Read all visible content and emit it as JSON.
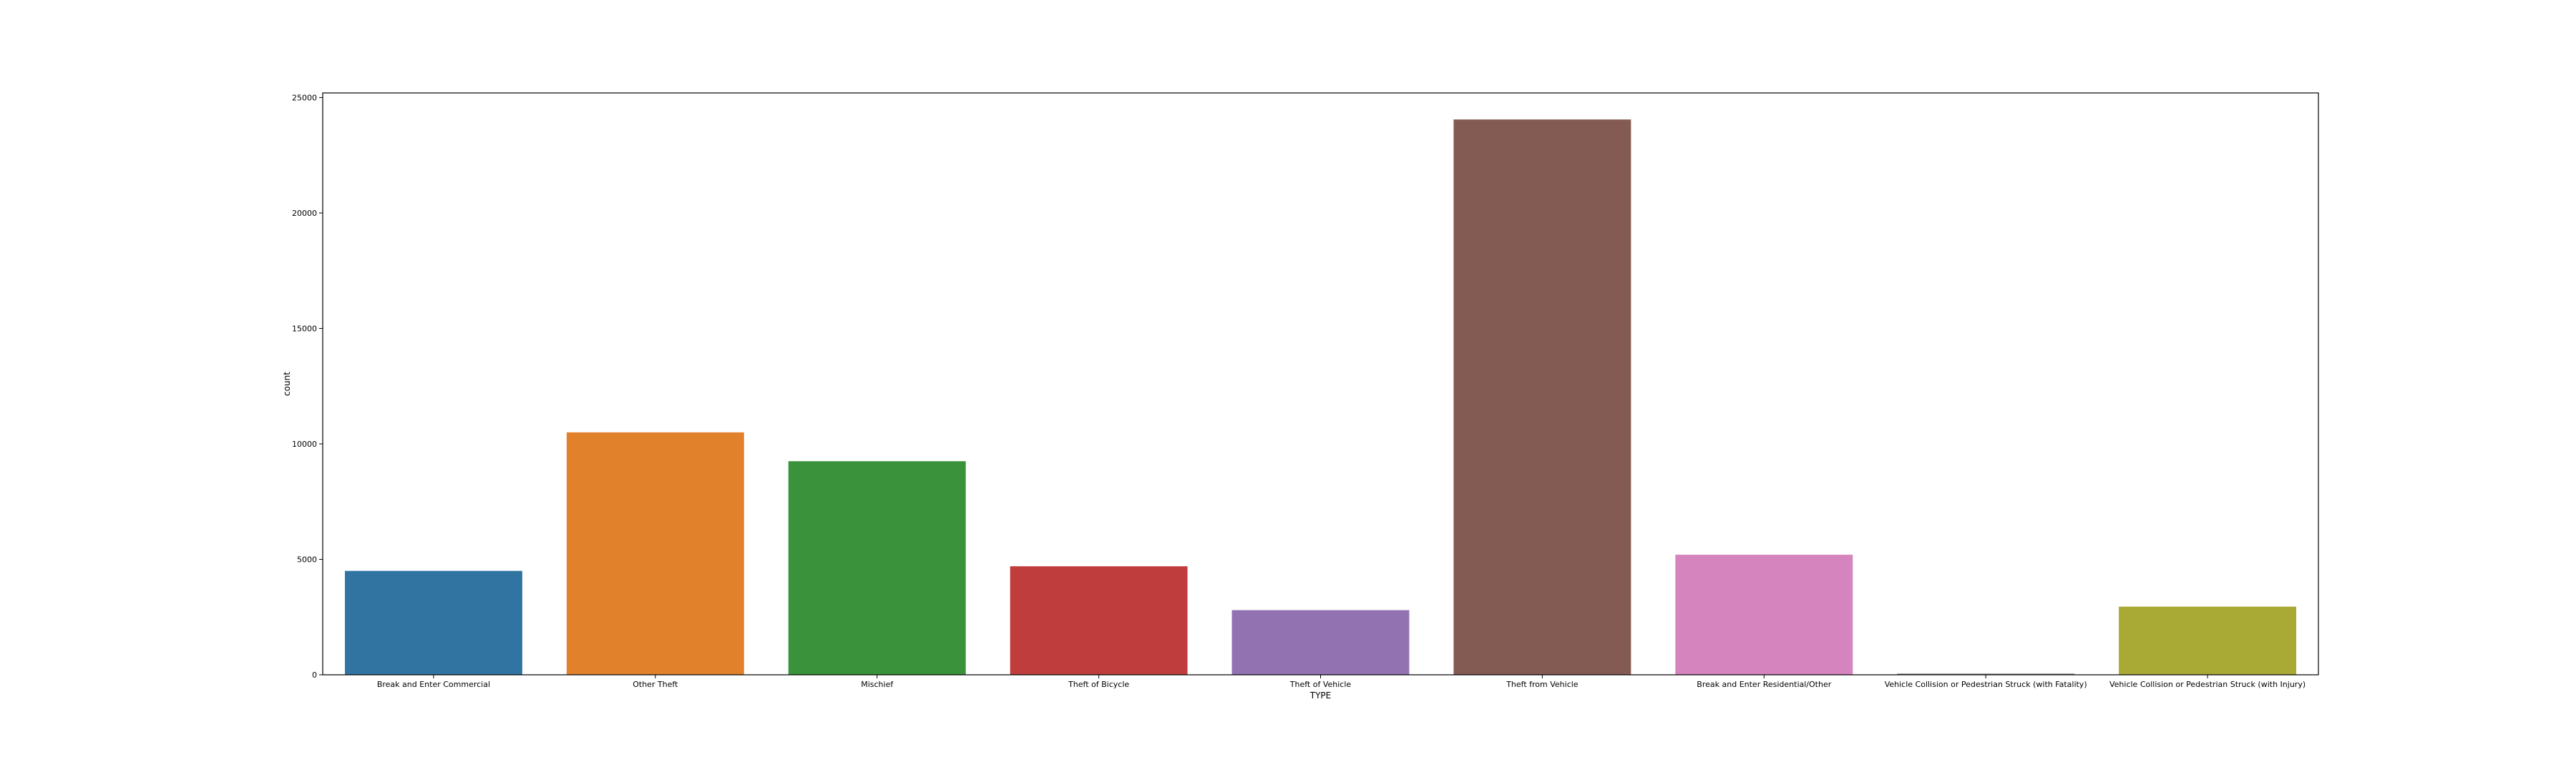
{
  "chart_data": {
    "type": "bar",
    "title": "",
    "xlabel": "TYPE",
    "ylabel": "count",
    "categories": [
      "Break and Enter Commercial",
      "Other Theft",
      "Mischief",
      "Theft of Bicycle",
      "Theft of Vehicle",
      "Theft from Vehicle",
      "Break and Enter Residential/Other",
      "Vehicle Collision or Pedestrian Struck (with Fatality)",
      "Vehicle Collision or Pedestrian Struck (with Injury)"
    ],
    "values": [
      4500,
      10500,
      9250,
      4700,
      2800,
      24050,
      5200,
      50,
      2950
    ],
    "colors": [
      "#3274a1",
      "#e1812c",
      "#3a923a",
      "#c03d3e",
      "#9372b2",
      "#845b53",
      "#d684bd",
      "#7f7f7f",
      "#a9aa35"
    ],
    "ylim": [
      0,
      25200
    ],
    "yticks": [
      0,
      5000,
      10000,
      15000,
      20000,
      25000
    ],
    "ytick_labels": [
      "0",
      "5000",
      "10000",
      "15000",
      "20000",
      "25000"
    ],
    "grid": false,
    "legend": "none"
  }
}
